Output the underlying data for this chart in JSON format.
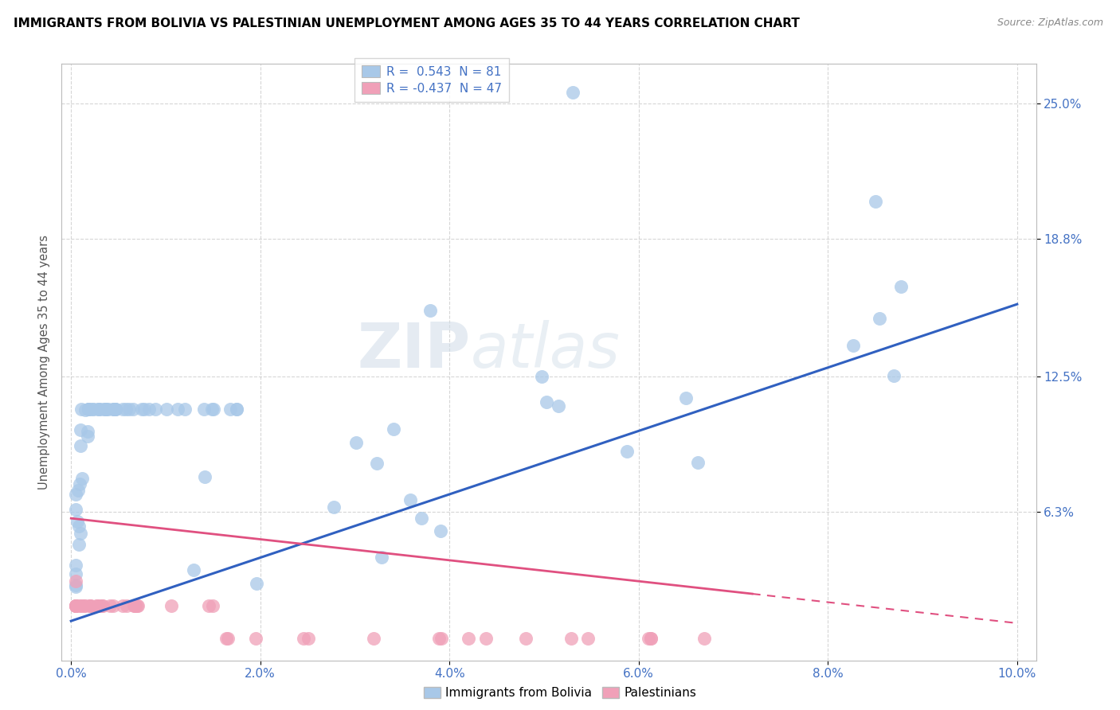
{
  "title": "IMMIGRANTS FROM BOLIVIA VS PALESTINIAN UNEMPLOYMENT AMONG AGES 35 TO 44 YEARS CORRELATION CHART",
  "source": "Source: ZipAtlas.com",
  "ylabel": "Unemployment Among Ages 35 to 44 years",
  "xlim": [
    -0.001,
    0.102
  ],
  "ylim": [
    -0.005,
    0.268
  ],
  "xticks": [
    0.0,
    0.02,
    0.04,
    0.06,
    0.08,
    0.1
  ],
  "xtick_labels": [
    "0.0%",
    "2.0%",
    "4.0%",
    "6.0%",
    "8.0%",
    "10.0%"
  ],
  "ytick_positions": [
    0.063,
    0.125,
    0.188,
    0.25
  ],
  "ytick_labels": [
    "6.3%",
    "12.5%",
    "18.8%",
    "25.0%"
  ],
  "R_bolivia": 0.543,
  "N_bolivia": 81,
  "R_palestinian": -0.437,
  "N_palestinian": 47,
  "color_bolivia": "#a8c8e8",
  "color_palestinian": "#f0a0b8",
  "line_color_bolivia": "#3060c0",
  "line_color_palestinian": "#e05080",
  "background_color": "#ffffff",
  "grid_color": "#cccccc",
  "watermark": "ZIPatlas",
  "watermark_zip": "ZIP",
  "watermark_atlas": "atlas"
}
